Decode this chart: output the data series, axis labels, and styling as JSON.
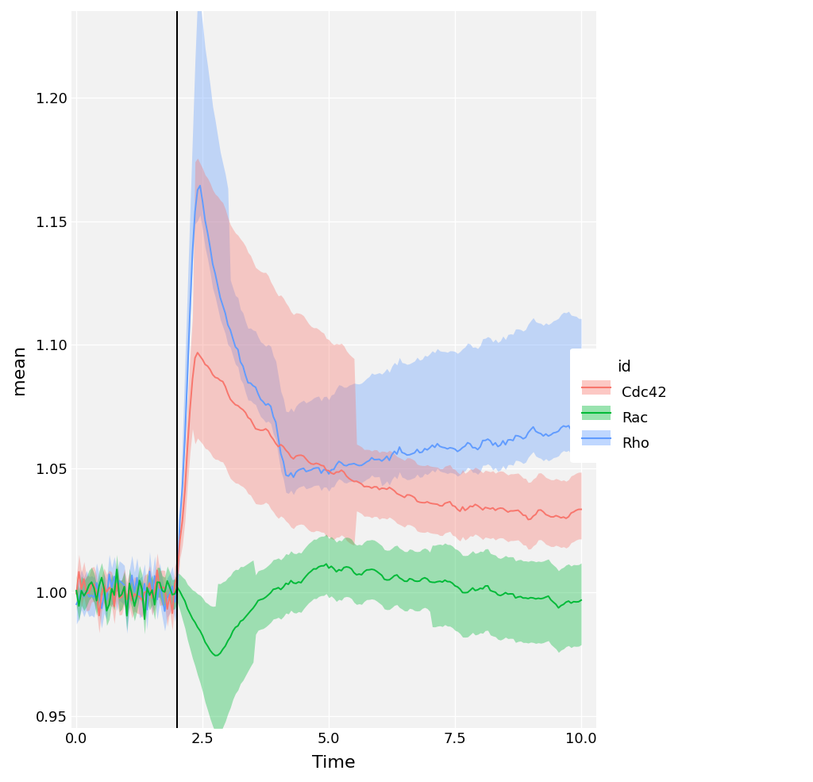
{
  "title": "",
  "xlabel": "Time",
  "ylabel": "mean",
  "xlim": [
    -0.1,
    10.3
  ],
  "ylim": [
    0.945,
    1.235
  ],
  "xticks": [
    0.0,
    2.5,
    5.0,
    7.5,
    10.0
  ],
  "yticks": [
    0.95,
    1.0,
    1.05,
    1.1,
    1.15,
    1.2
  ],
  "vline_x": 2.0,
  "colors": {
    "Cdc42": "#F8766D",
    "Rac": "#00BA38",
    "Rho": "#619CFF"
  },
  "alpha_ribbon": 0.35,
  "legend_title": "id",
  "legend_labels": [
    "Cdc42",
    "Rac",
    "Rho"
  ],
  "background_color": "#FFFFFF",
  "panel_background": "#F2F2F2",
  "grid_color": "#FFFFFF",
  "font_size_axis_label": 16,
  "font_size_tick": 13,
  "font_size_legend_title": 14,
  "font_size_legend": 13
}
